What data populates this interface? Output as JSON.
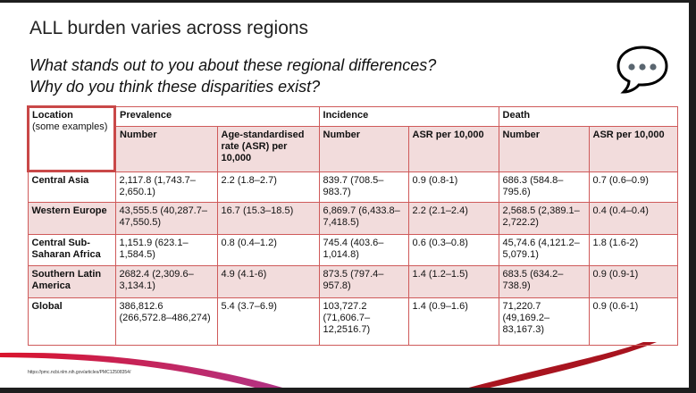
{
  "title": "ALL burden varies across regions",
  "questions": [
    "What stands out to you about these regional differences?",
    "Why do you think these disparities exist?"
  ],
  "icon": "speech-bubble-ellipsis-icon",
  "table": {
    "location_header": "Location",
    "location_sub": "(some examples)",
    "groups": [
      "Prevalence",
      "Incidence",
      "Death"
    ],
    "subheaders": [
      "Number",
      "Age-standardised rate (ASR) per 10,000",
      "Number",
      "ASR per 10,000",
      "Number",
      "ASR per 10,000"
    ],
    "rows": [
      {
        "location": "Central Asia",
        "cells": [
          "2,117.8 (1,743.7–2,650.1)",
          "2.2 (1.8–2.7)",
          "839.7 (708.5–983.7)",
          "0.9 (0.8-1)",
          "686.3 (584.8–795.6)",
          "0.7 (0.6–0.9)"
        ]
      },
      {
        "location": "Western Europe",
        "cells": [
          "43,555.5 (40,287.7–47,550.5)",
          "16.7 (15.3–18.5)",
          "6,869.7 (6,433.8–7,418.5)",
          "2.2 (2.1–2.4)",
          "2,568.5 (2,389.1–2,722.2)",
          "0.4 (0.4–0.4)"
        ]
      },
      {
        "location": "Central Sub-Saharan Africa",
        "cells": [
          "1,151.9 (623.1–1,584.5)",
          "0.8 (0.4–1.2)",
          "745.4 (403.6–1,014.8)",
          "0.6 (0.3–0.8)",
          "45,74.6 (4,121.2–5,079.1)",
          "1.8 (1.6-2)"
        ]
      },
      {
        "location": "Southern Latin America",
        "cells": [
          "2682.4 (2,309.6–3,134.1)",
          "4.9 (4.1-6)",
          "873.5 (797.4–957.8)",
          "1.4 (1.2–1.5)",
          "683.5 (634.2–738.9)",
          "0.9 (0.9-1)"
        ]
      },
      {
        "location": "Global",
        "cells": [
          "386,812.6 (266,572.8–486,274)",
          "5.4 (3.7–6.9)",
          "103,727.2 (71,606.7–12,2516.7)",
          "1.4 (0.9–1.6)",
          "71,220.7 (49,169.2–83,167.3)",
          "0.9 (0.6-1)"
        ]
      }
    ]
  },
  "footer_url": "https://pmc.ncbi.nlm.nih.gov/articles/PMC12508354/",
  "colors": {
    "border": "#cf5a5a",
    "pink": "#f2dcdc",
    "swoosh_red": "#d9142c",
    "swoosh_purple": "#b0358a"
  }
}
